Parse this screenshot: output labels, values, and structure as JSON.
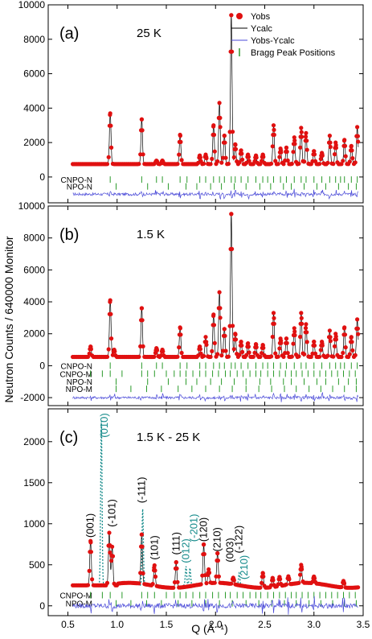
{
  "colors": {
    "obs": "#e01010",
    "calc": "#000000",
    "diff": "#4a4ad8",
    "bragg": "#2a9a2a",
    "teal": "#138a8a",
    "axis": "#000000"
  },
  "chart_data": [
    {
      "panel_label": "(a)",
      "temperature": "25 K",
      "type": "line",
      "x_range": [
        0.3,
        3.5
      ],
      "y_range": [
        -1500,
        10000
      ],
      "y_ticks": [
        "0",
        "2000",
        "4000",
        "6000",
        "8000",
        "10000"
      ],
      "y_tick_values": [
        0,
        2000,
        4000,
        6000,
        8000,
        10000
      ],
      "legend": {
        "obs": "Yobs",
        "calc": "Ycalc",
        "diff": "Yobs-Ycalc",
        "bragg": "Bragg Peak Positions"
      },
      "baseline": 750,
      "diff_offset": -1000,
      "peaks": [
        {
          "q": 0.93,
          "y": 3700
        },
        {
          "q": 1.25,
          "y": 3350
        },
        {
          "q": 1.4,
          "y": 950
        },
        {
          "q": 1.46,
          "y": 950
        },
        {
          "q": 1.64,
          "y": 2450
        },
        {
          "q": 1.84,
          "y": 1250
        },
        {
          "q": 1.9,
          "y": 1300
        },
        {
          "q": 1.98,
          "y": 3000
        },
        {
          "q": 2.04,
          "y": 4300
        },
        {
          "q": 2.09,
          "y": 2400
        },
        {
          "q": 2.16,
          "y": 9400
        },
        {
          "q": 2.2,
          "y": 1900
        },
        {
          "q": 2.26,
          "y": 1550
        },
        {
          "q": 2.33,
          "y": 1300
        },
        {
          "q": 2.41,
          "y": 1250
        },
        {
          "q": 2.48,
          "y": 1300
        },
        {
          "q": 2.59,
          "y": 3000
        },
        {
          "q": 2.66,
          "y": 1650
        },
        {
          "q": 2.72,
          "y": 1700
        },
        {
          "q": 2.8,
          "y": 2300
        },
        {
          "q": 2.87,
          "y": 2850
        },
        {
          "q": 2.92,
          "y": 2550
        },
        {
          "q": 3.0,
          "y": 1500
        },
        {
          "q": 3.08,
          "y": 1400
        },
        {
          "q": 3.16,
          "y": 2400
        },
        {
          "q": 3.22,
          "y": 2000
        },
        {
          "q": 3.31,
          "y": 2150
        },
        {
          "q": 3.38,
          "y": 1800
        },
        {
          "q": 3.44,
          "y": 2900
        }
      ],
      "bragg_rows": [
        {
          "label": "CNPO-N",
          "y": -150,
          "positions": [
            0.93,
            1.25,
            1.4,
            1.46,
            1.64,
            1.71,
            1.84,
            1.9,
            1.98,
            2.04,
            2.09,
            2.16,
            2.2,
            2.26,
            2.33,
            2.41,
            2.48,
            2.53,
            2.59,
            2.66,
            2.72,
            2.8,
            2.87,
            2.92,
            3.0,
            3.08,
            3.16,
            3.22,
            3.27,
            3.31,
            3.38,
            3.44
          ]
        },
        {
          "label": "NPO-N",
          "y": -550,
          "positions": [
            0.99,
            1.31,
            1.52,
            1.7,
            1.81,
            1.95,
            2.06,
            2.19,
            2.31,
            2.45,
            2.56,
            2.69,
            2.77,
            2.9,
            3.03,
            3.12,
            3.25,
            3.35,
            3.43
          ]
        }
      ]
    },
    {
      "panel_label": "(b)",
      "temperature": "1.5 K",
      "type": "line",
      "x_range": [
        0.3,
        3.5
      ],
      "y_range": [
        -2500,
        10000
      ],
      "y_ticks": [
        "-2000",
        "0",
        "2000",
        "4000",
        "6000",
        "8000",
        "10000"
      ],
      "y_tick_values": [
        -2000,
        0,
        2000,
        4000,
        6000,
        8000,
        10000
      ],
      "baseline": 550,
      "diff_offset": -2000,
      "peaks": [
        {
          "q": 0.73,
          "y": 1200
        },
        {
          "q": 0.93,
          "y": 4100
        },
        {
          "q": 0.97,
          "y": 1000
        },
        {
          "q": 1.25,
          "y": 3600
        },
        {
          "q": 1.4,
          "y": 1100
        },
        {
          "q": 1.46,
          "y": 1000
        },
        {
          "q": 1.64,
          "y": 2400
        },
        {
          "q": 1.84,
          "y": 1200
        },
        {
          "q": 1.9,
          "y": 1800
        },
        {
          "q": 1.98,
          "y": 3200
        },
        {
          "q": 2.04,
          "y": 4600
        },
        {
          "q": 2.09,
          "y": 2300
        },
        {
          "q": 2.16,
          "y": 9500
        },
        {
          "q": 2.2,
          "y": 2000
        },
        {
          "q": 2.26,
          "y": 1500
        },
        {
          "q": 2.33,
          "y": 1400
        },
        {
          "q": 2.41,
          "y": 1350
        },
        {
          "q": 2.48,
          "y": 1300
        },
        {
          "q": 2.59,
          "y": 3300
        },
        {
          "q": 2.66,
          "y": 1700
        },
        {
          "q": 2.72,
          "y": 1700
        },
        {
          "q": 2.8,
          "y": 2350
        },
        {
          "q": 2.87,
          "y": 3300
        },
        {
          "q": 2.92,
          "y": 2600
        },
        {
          "q": 3.0,
          "y": 1500
        },
        {
          "q": 3.08,
          "y": 1500
        },
        {
          "q": 3.16,
          "y": 2200
        },
        {
          "q": 3.22,
          "y": 2000
        },
        {
          "q": 3.31,
          "y": 2400
        },
        {
          "q": 3.38,
          "y": 1800
        },
        {
          "q": 3.44,
          "y": 2900
        }
      ],
      "bragg_rows": [
        {
          "label": "CNPO-N",
          "y": 0,
          "positions": [
            0.93,
            1.25,
            1.4,
            1.46,
            1.64,
            1.71,
            1.84,
            1.9,
            1.98,
            2.04,
            2.09,
            2.16,
            2.2,
            2.26,
            2.33,
            2.41,
            2.48,
            2.53,
            2.59,
            2.66,
            2.72,
            2.8,
            2.87,
            2.92,
            3.0,
            3.08,
            3.16,
            3.22,
            3.27,
            3.31,
            3.38,
            3.44
          ]
        },
        {
          "label": "CNPO-M",
          "y": -500,
          "positions": [
            0.73,
            0.85,
            0.93,
            1.05,
            1.25,
            1.31,
            1.38,
            1.5,
            1.58,
            1.64,
            1.7,
            1.77,
            1.84,
            1.9,
            1.97,
            2.03,
            2.1,
            2.15,
            2.22,
            2.28,
            2.35,
            2.41,
            2.46,
            2.53,
            2.59,
            2.65,
            2.71,
            2.77,
            2.82,
            2.88,
            2.94,
            3.0,
            3.06,
            3.12,
            3.18,
            3.24,
            3.3,
            3.36,
            3.42
          ]
        },
        {
          "label": "NPO-N",
          "y": -1000,
          "positions": [
            0.99,
            1.31,
            1.52,
            1.7,
            1.81,
            1.95,
            2.06,
            2.19,
            2.31,
            2.45,
            2.56,
            2.69,
            2.77,
            2.9,
            3.03,
            3.12,
            3.25,
            3.35,
            3.43
          ]
        },
        {
          "label": "NPO-M",
          "y": -1450,
          "positions": [
            0.99,
            1.14,
            1.3,
            1.45,
            1.62,
            1.76,
            1.9,
            2.04,
            2.17,
            2.31,
            2.44,
            2.57,
            2.7,
            2.82,
            2.95,
            3.07,
            3.19,
            3.31,
            3.43
          ]
        }
      ]
    },
    {
      "panel_label": "(c)",
      "temperature": "1.5 K - 25 K",
      "type": "line",
      "x_range": [
        0.3,
        3.5
      ],
      "y_range": [
        -120,
        2400
      ],
      "y_ticks": [
        "0",
        "500",
        "1000",
        "1500",
        "2000"
      ],
      "y_tick_values": [
        0,
        500,
        1000,
        1500,
        2000
      ],
      "x_ticks": [
        "0.5",
        "1.0",
        "1.5",
        "2.0",
        "2.5",
        "3.0",
        "3.5"
      ],
      "x_tick_values": [
        0.5,
        1.0,
        1.5,
        2.0,
        2.5,
        3.0,
        3.5
      ],
      "xlabel": "Q (Å⁻¹)",
      "ylabel": "Neutron Counts / 640000  Monitor",
      "baseline": 250,
      "diff_offset": 0,
      "peaks": [
        {
          "q": 0.73,
          "y": 790
        },
        {
          "q": 0.92,
          "y": 890
        },
        {
          "q": 0.95,
          "y": 720
        },
        {
          "q": 1.25,
          "y": 850
        },
        {
          "q": 1.38,
          "y": 500
        },
        {
          "q": 1.6,
          "y": 560
        },
        {
          "q": 1.88,
          "y": 730
        },
        {
          "q": 1.93,
          "y": 420
        },
        {
          "q": 2.02,
          "y": 610
        },
        {
          "q": 2.18,
          "y": 330
        },
        {
          "q": 2.48,
          "y": 430
        },
        {
          "q": 2.58,
          "y": 360
        },
        {
          "q": 2.65,
          "y": 360
        },
        {
          "q": 2.74,
          "y": 350
        },
        {
          "q": 2.87,
          "y": 470
        },
        {
          "q": 3.0,
          "y": 330
        },
        {
          "q": 3.3,
          "y": 330
        }
      ],
      "calc_extra_peaks": [
        {
          "q": 0.84,
          "y": 2250
        },
        {
          "q": 1.26,
          "y": 1180
        },
        {
          "q": 1.7,
          "y": 480
        },
        {
          "q": 1.74,
          "y": 460
        },
        {
          "q": 2.24,
          "y": 400
        }
      ],
      "bragg_rows": [
        {
          "label": "CNPO-M",
          "y": 130,
          "positions": [
            0.73,
            0.85,
            0.93,
            1.05,
            1.25,
            1.31,
            1.38,
            1.5,
            1.58,
            1.64,
            1.7,
            1.77,
            1.84,
            1.9,
            1.97,
            2.03,
            2.1,
            2.15,
            2.22,
            2.28,
            2.35,
            2.41,
            2.46,
            2.53,
            2.59,
            2.65,
            2.71,
            2.77,
            2.82,
            2.88,
            2.94,
            3.0,
            3.06,
            3.12,
            3.18,
            3.24,
            3.3,
            3.36,
            3.42
          ]
        },
        {
          "label": "NPO-M",
          "y": 30,
          "positions": [
            0.99,
            1.14,
            1.3,
            1.45,
            1.62,
            1.76,
            1.9,
            2.04,
            2.17,
            2.31,
            2.44,
            2.57,
            2.7,
            2.82,
            2.95,
            3.07,
            3.19,
            3.31,
            3.43
          ]
        }
      ],
      "annotations": [
        {
          "text": "(001)",
          "q": 0.73,
          "y": 830,
          "color": "black"
        },
        {
          "text": "(010)",
          "q": 0.87,
          "y": 2050,
          "color": "teal"
        },
        {
          "text": "(-101)",
          "q": 0.95,
          "y": 960,
          "color": "black"
        },
        {
          "text": "(-111)",
          "q": 1.25,
          "y": 1250,
          "color": "black"
        },
        {
          "text": "(101)",
          "q": 1.38,
          "y": 560,
          "color": "black"
        },
        {
          "text": "(111)",
          "q": 1.6,
          "y": 620,
          "color": "black"
        },
        {
          "text": "(012)",
          "q": 1.7,
          "y": 520,
          "color": "teal"
        },
        {
          "text": "(-201)",
          "q": 1.78,
          "y": 780,
          "color": "teal"
        },
        {
          "text": "(120)",
          "q": 1.88,
          "y": 780,
          "color": "black"
        },
        {
          "text": "(210)",
          "q": 2.02,
          "y": 660,
          "color": "black"
        },
        {
          "text": "(003)",
          "q": 2.15,
          "y": 530,
          "color": "black"
        },
        {
          "text": "(-122)",
          "q": 2.24,
          "y": 640,
          "color": "black"
        },
        {
          "text": "(210)",
          "q": 2.29,
          "y": 320,
          "color": "teal"
        }
      ]
    }
  ]
}
